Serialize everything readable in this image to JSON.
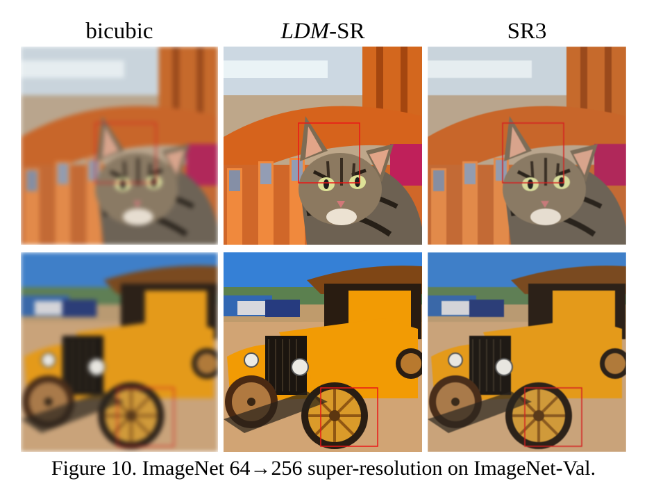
{
  "columns": [
    {
      "label": "bicubic"
    },
    {
      "label_italic": "LDM",
      "label_rest": "-SR"
    },
    {
      "label": "SR3"
    }
  ],
  "caption": "Figure 10. ImageNet 64→256 super-resolution on ImageNet-Val.",
  "colors": {
    "crop_box": "#d42020",
    "car_body": "#e49a1a",
    "cat_fur": "#6d6356",
    "bench_wood": "#c8662a",
    "sky": "#3f7fc8"
  },
  "icons": [
    "cat-photo",
    "model-t-car-photo",
    "crop-highlight-box"
  ]
}
